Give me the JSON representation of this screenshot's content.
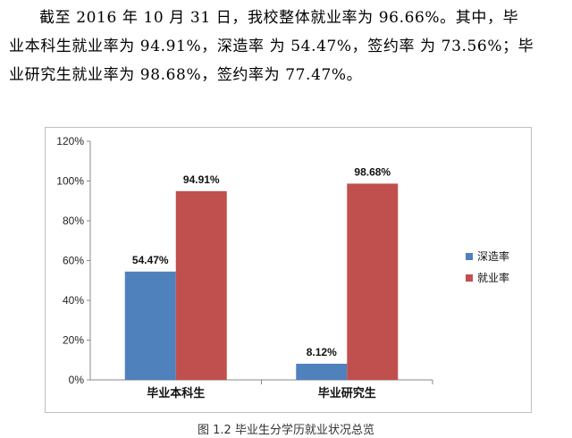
{
  "text": {
    "line1": "截至 2016 年 10 月 31 日，我校整体就业率为 96.66%。其中，毕",
    "line2": "业本科生就业率为 94.91%，深造率 为 54.47%，签约率 为 73.56%；毕",
    "line3": "业研究生就业率为 98.68%，签约率为 77.47%。"
  },
  "caption": "图 1.2 毕业生分学历就业状况总览",
  "chart_data": {
    "type": "bar",
    "categories": [
      "毕业本科生",
      "毕业研究生"
    ],
    "series": [
      {
        "name": "深造率",
        "values": [
          54.47,
          8.12
        ],
        "labels": [
          "54.47%",
          "8.12%"
        ],
        "color": "#4f81bd"
      },
      {
        "name": "就业率",
        "values": [
          94.91,
          98.68
        ],
        "labels": [
          "94.91%",
          "98.68%"
        ],
        "color": "#c0504d"
      }
    ],
    "ylim": [
      0,
      120
    ],
    "yticks": [
      "0%",
      "20%",
      "40%",
      "60%",
      "80%",
      "100%",
      "120%"
    ],
    "grid": false,
    "legend_position": "right"
  }
}
